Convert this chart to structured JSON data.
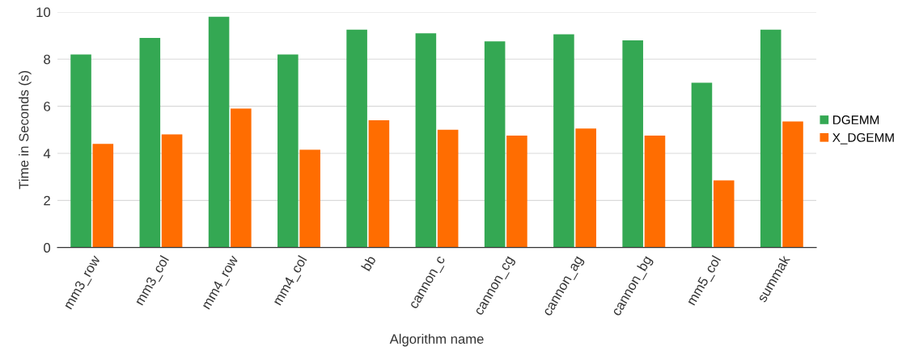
{
  "chart_data": {
    "type": "bar",
    "xlabel": "Algorithm name",
    "ylabel": "Time in Seconds (s)",
    "categories": [
      "mm3_row",
      "mm3_col",
      "mm4_row",
      "mm4_col",
      "bb",
      "cannon_c",
      "cannon_cg",
      "cannon_ag",
      "cannon_bg",
      "mm5_col",
      "summak"
    ],
    "series": [
      {
        "name": "DGEMM",
        "color": "#34a853",
        "values": [
          8.2,
          8.9,
          9.8,
          8.2,
          9.25,
          9.1,
          8.75,
          9.05,
          8.8,
          7.0,
          9.25
        ]
      },
      {
        "name": "X_DGEMM",
        "color": "#ff6d01",
        "values": [
          4.4,
          4.8,
          5.9,
          4.15,
          5.4,
          5.0,
          4.75,
          5.05,
          4.75,
          2.85,
          5.35
        ]
      }
    ],
    "ylim": [
      0,
      10
    ],
    "yticks": [
      0,
      2,
      4,
      6,
      8,
      10
    ],
    "grid": "y",
    "legend": "right"
  }
}
